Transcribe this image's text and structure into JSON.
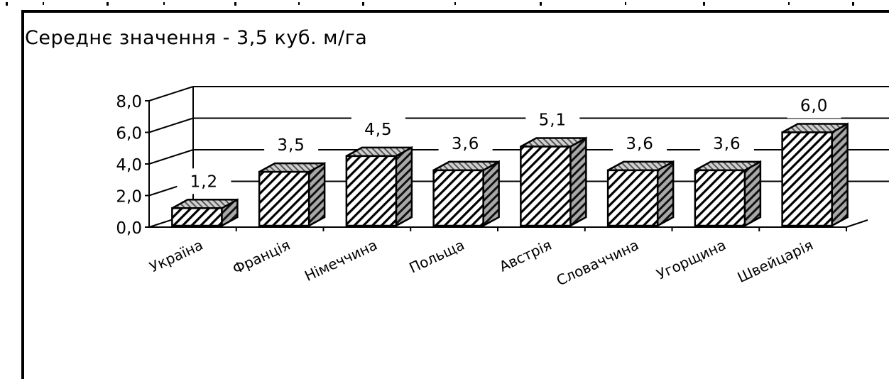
{
  "chart_data": {
    "type": "bar",
    "title": "Середнє значення - 3,5 куб. м/га",
    "categories": [
      "Україна",
      "Франція",
      "Німеччина",
      "Польща",
      "Австрія",
      "Словаччина",
      "Угорщина",
      "Швейцарія"
    ],
    "values": [
      1.2,
      3.5,
      4.5,
      3.6,
      5.1,
      3.6,
      3.6,
      6.0
    ],
    "data_labels": [
      "1,2",
      "3,5",
      "4,5",
      "3,6",
      "5,1",
      "3,6",
      "3,6",
      "6,0"
    ],
    "ylim": [
      0,
      8
    ],
    "yticks": [
      "0,0",
      "2,0",
      "4,0",
      "6,0",
      "8,0"
    ],
    "xlabel": "",
    "ylabel": "",
    "grid": true,
    "style": "3d-bar-hatched"
  }
}
